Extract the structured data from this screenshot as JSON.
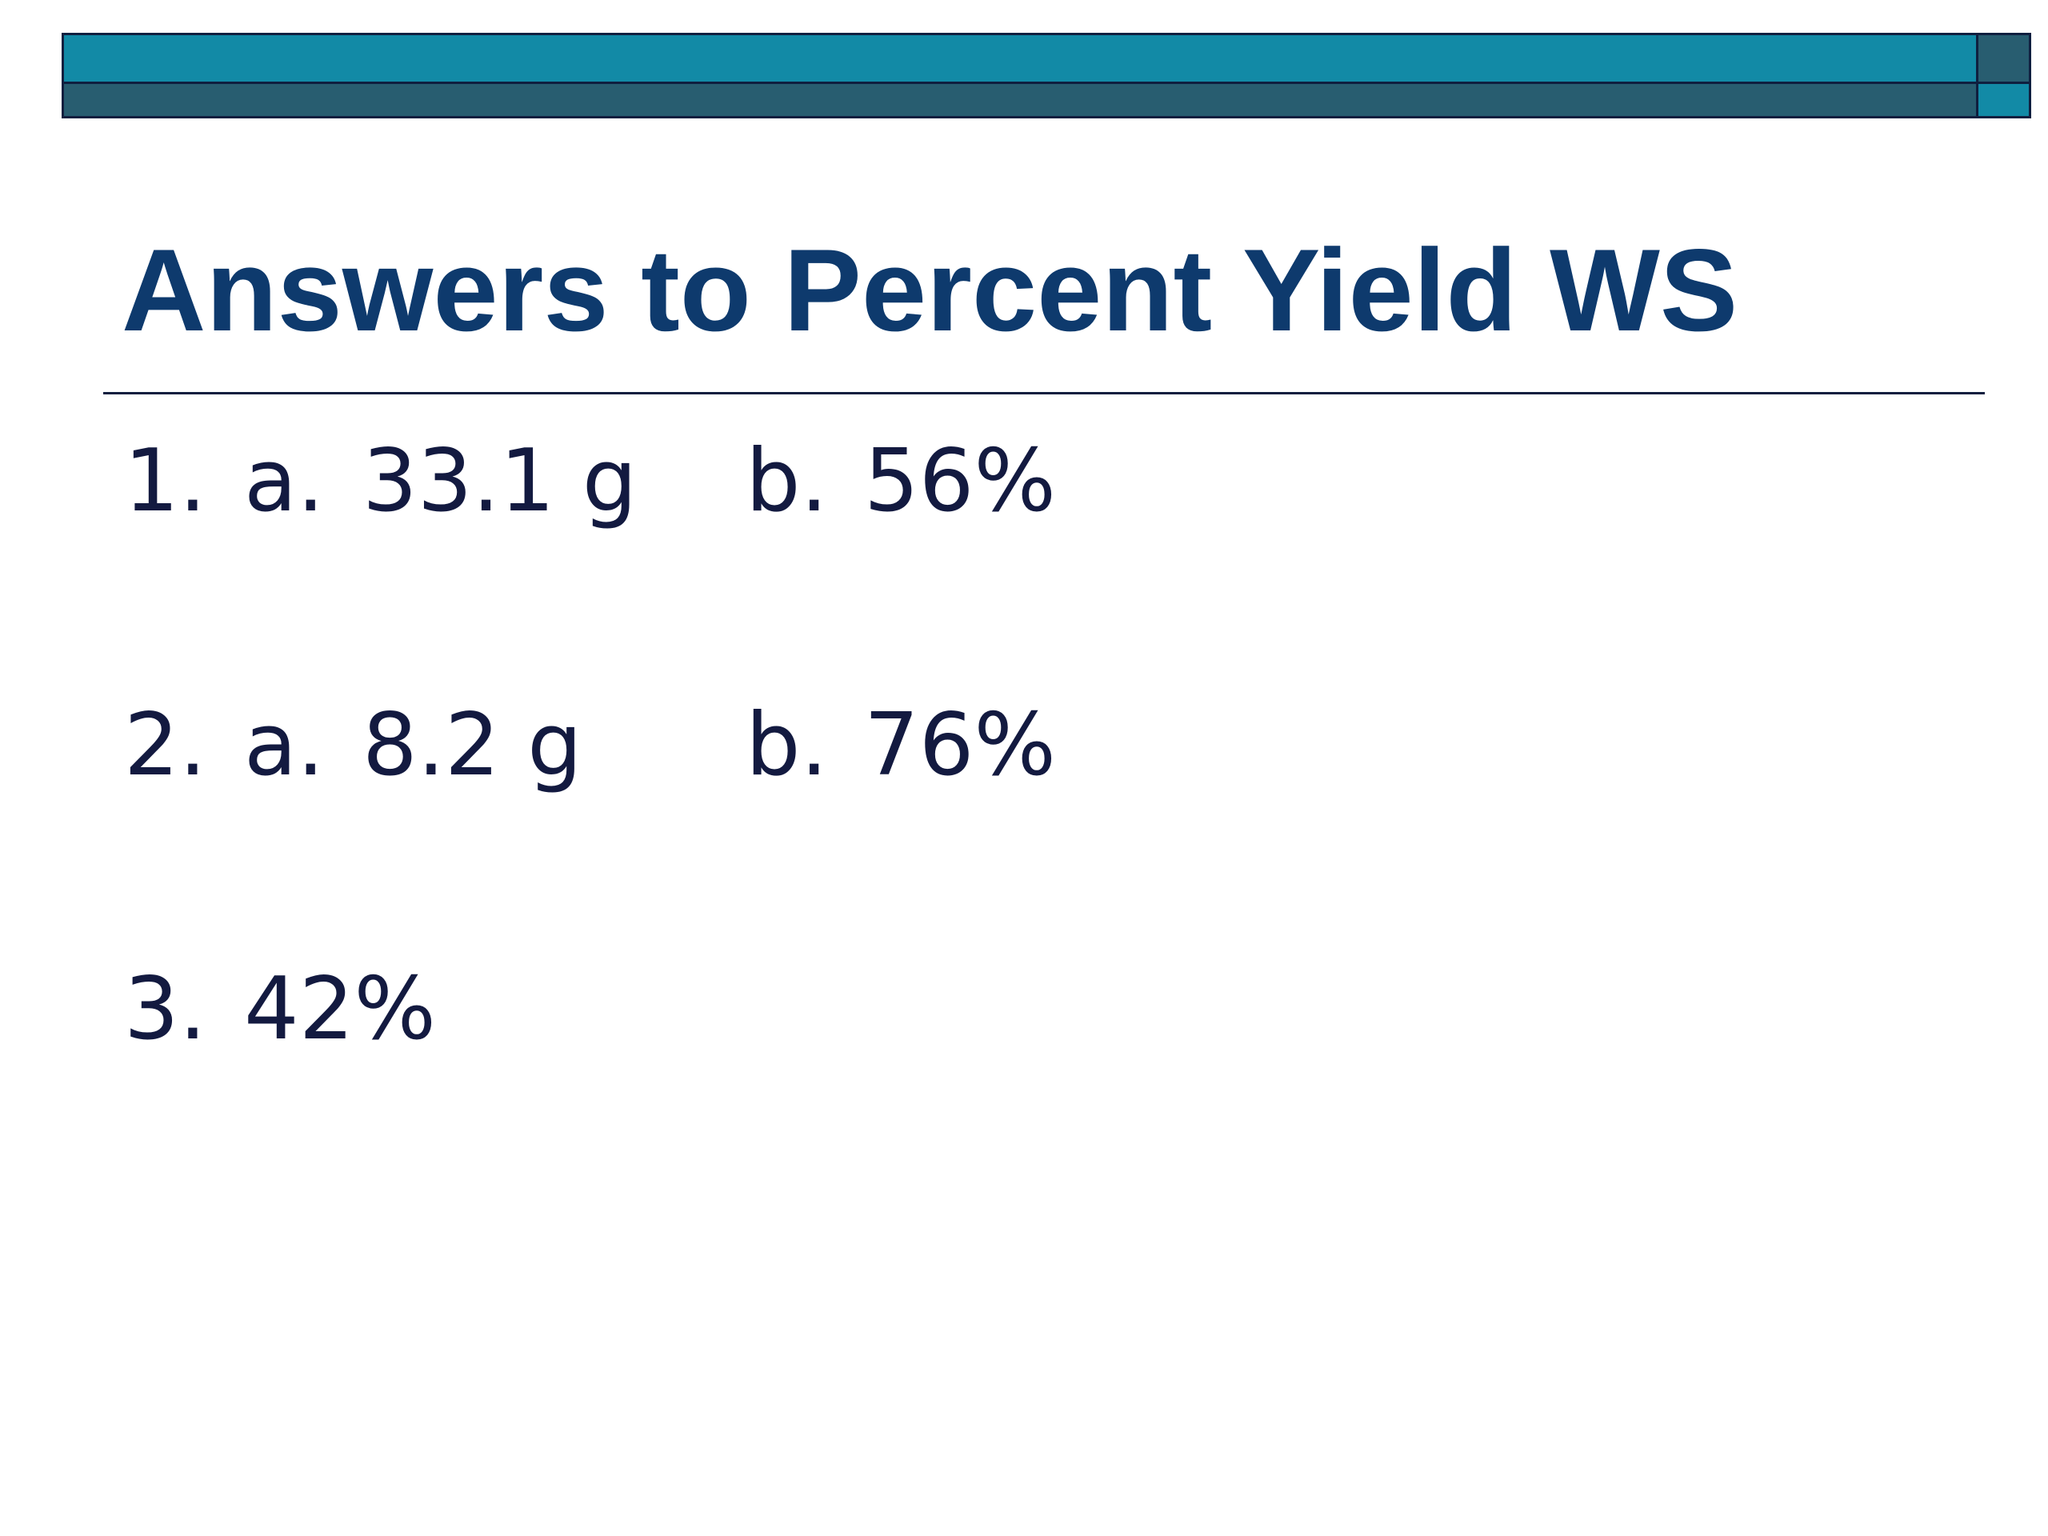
{
  "slide": {
    "title": "Answers to Percent Yield WS",
    "colors": {
      "bar_primary": "#128aa6",
      "bar_secondary": "#285d70",
      "outline": "#0f1f3f",
      "title": "#0e3a6d",
      "body_text": "#131a40"
    }
  },
  "answers": [
    {
      "number": "1.",
      "a_label": "a.",
      "a_value": "33.1 g",
      "b_label": "b.",
      "b_value": "56%"
    },
    {
      "number": "2.",
      "a_label": "a.",
      "a_value": "8.2 g",
      "b_label": "b.",
      "b_value": "76%"
    },
    {
      "number": "3.",
      "value": "42%"
    }
  ]
}
